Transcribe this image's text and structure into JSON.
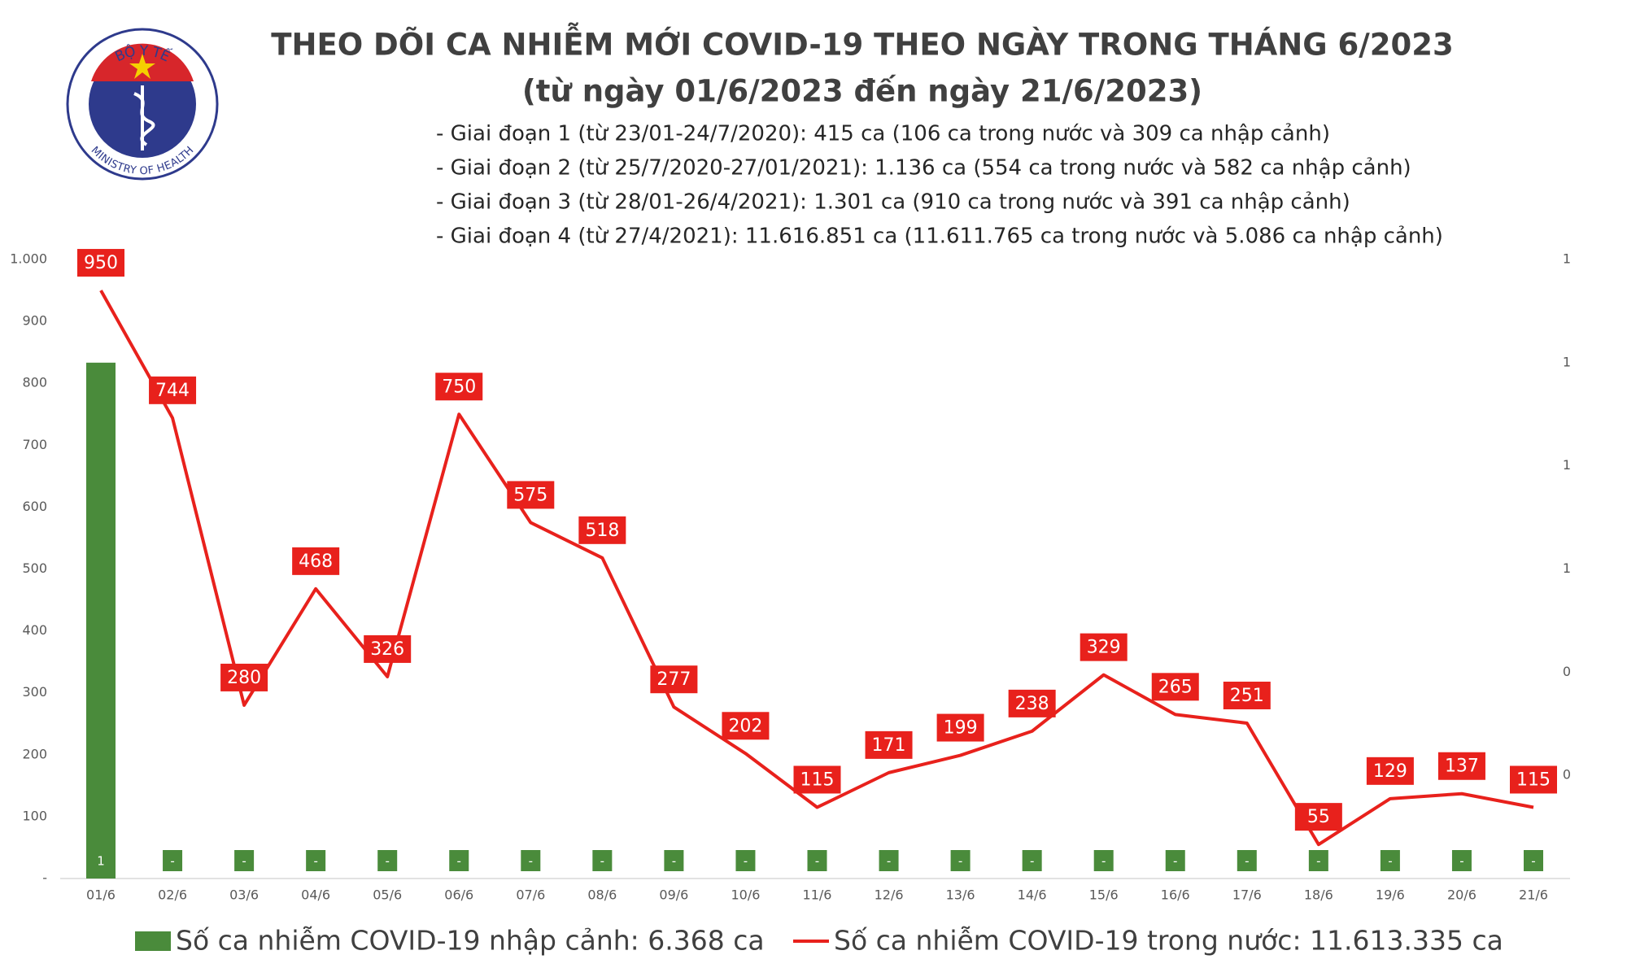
{
  "logo": {
    "top": "BỘ Y TẾ",
    "bottom": "MINISTRY OF HEALTH"
  },
  "chart_data": {
    "type": "combo",
    "title": "THEO DÕI CA NHIỄM MỚI COVID-19 THEO NGÀY TRONG THÁNG 6/2023",
    "subtitle": "(từ ngày 01/6/2023 đến ngày 21/6/2023)",
    "notes": [
      "- Giai đoạn 1 (từ 23/01-24/7/2020): 415 ca (106 ca trong nước và 309 ca nhập cảnh)",
      "- Giai đoạn 2 (từ 25/7/2020-27/01/2021): 1.136 ca (554 ca trong nước và 582 ca nhập cảnh)",
      "- Giai đoạn 3 (từ 28/01-26/4/2021): 1.301 ca (910 ca trong nước và 391 ca nhập cảnh)",
      "- Giai đoạn 4 (từ 27/4/2021): 11.616.851 ca (11.611.765 ca trong nước và 5.086 ca nhập cảnh)"
    ],
    "categories": [
      "01/6",
      "02/6",
      "03/6",
      "04/6",
      "05/6",
      "06/6",
      "07/6",
      "08/6",
      "09/6",
      "10/6",
      "11/6",
      "12/6",
      "13/6",
      "14/6",
      "15/6",
      "16/6",
      "17/6",
      "18/6",
      "19/6",
      "20/6",
      "21/6"
    ],
    "series": [
      {
        "name": "Số ca nhiễm COVID-19 nhập cảnh: 6.368 ca",
        "color": "#4a8b3b",
        "kind": "bar",
        "axis": "y2",
        "values": [
          1,
          0,
          0,
          0,
          0,
          0,
          0,
          0,
          0,
          0,
          0,
          0,
          0,
          0,
          0,
          0,
          0,
          0,
          0,
          0,
          0
        ],
        "value_labels": [
          "1",
          "-",
          "-",
          "-",
          "-",
          "-",
          "-",
          "-",
          "-",
          "-",
          "-",
          "-",
          "-",
          "-",
          "-",
          "-",
          "-",
          "-",
          "-",
          "-",
          "-"
        ]
      },
      {
        "name": "Số ca nhiễm COVID-19 trong nước: 11.613.335 ca",
        "color": "#e8211c",
        "kind": "line",
        "values": [
          950,
          744,
          280,
          468,
          326,
          750,
          575,
          518,
          277,
          202,
          115,
          171,
          199,
          238,
          329,
          265,
          251,
          55,
          129,
          137,
          115
        ]
      }
    ],
    "ylim": [
      0,
      1000
    ],
    "yticks": [
      {
        "value": 0,
        "label": "-"
      },
      100,
      200,
      300,
      400,
      500,
      600,
      700,
      800,
      900,
      {
        "value": 1000,
        "label": "1.000"
      }
    ],
    "y2lim": [
      0,
      1.2
    ],
    "y2ticks": [
      {
        "value": 0.2,
        "label": "0"
      },
      {
        "value": 0.4,
        "label": "0"
      },
      {
        "value": 0.6,
        "label": "1"
      },
      {
        "value": 0.8,
        "label": "1"
      },
      1,
      {
        "value": 1.2,
        "label": "1"
      }
    ],
    "grid": false
  }
}
